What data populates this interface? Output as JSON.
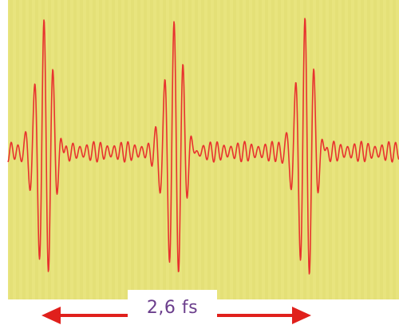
{
  "diagram": {
    "colors": {
      "background": "#e8e47e",
      "background_stripe": "#e2de74",
      "waveform": "#e8322e",
      "arrow": "#e0201c",
      "label_text": "#6b3e8c",
      "page": "#ffffff"
    },
    "waveform": {
      "pulse_count": 3,
      "description_icon": "pulse-train-waveform"
    },
    "period_arrow": {
      "label": "2,6 fs",
      "style": "double-headed-arrow"
    }
  }
}
